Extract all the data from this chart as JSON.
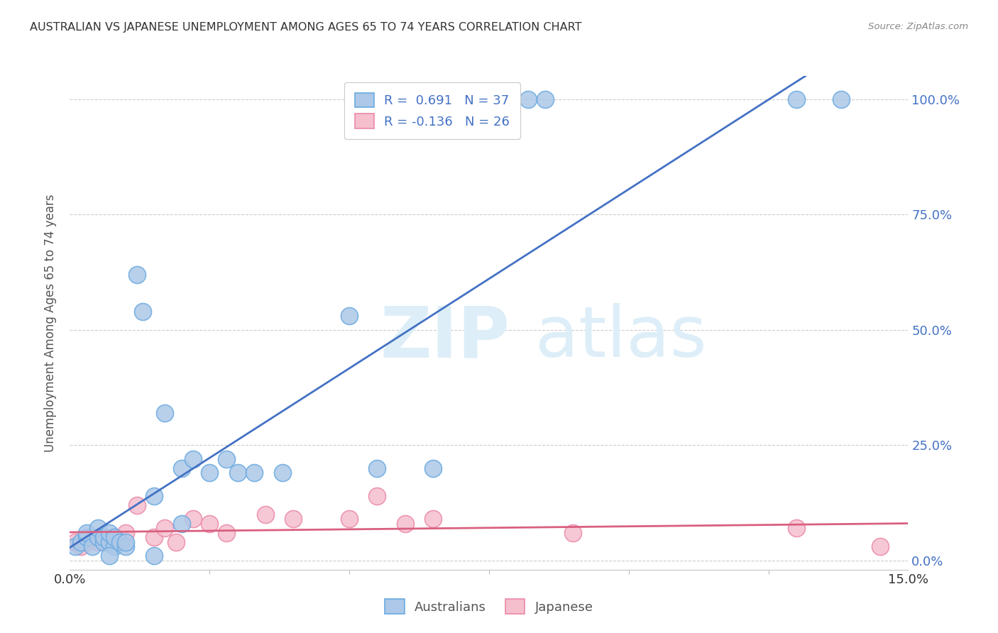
{
  "title": "AUSTRALIAN VS JAPANESE UNEMPLOYMENT AMONG AGES 65 TO 74 YEARS CORRELATION CHART",
  "source": "Source: ZipAtlas.com",
  "ylabel": "Unemployment Among Ages 65 to 74 years",
  "xlim": [
    0.0,
    0.15
  ],
  "ylim": [
    -0.02,
    1.05
  ],
  "xtick_positions": [
    0.0,
    0.15
  ],
  "xtick_labels": [
    "0.0%",
    "15.0%"
  ],
  "xtick_minor_positions": [
    0.025,
    0.05,
    0.075,
    0.1,
    0.125
  ],
  "yticks_right": [
    0.0,
    0.25,
    0.5,
    0.75,
    1.0
  ],
  "ytick_labels_right": [
    "0.0%",
    "25.0%",
    "50.0%",
    "75.0%",
    "100.0%"
  ],
  "blue_color": "#adc8e8",
  "blue_edge_color": "#6aaae0",
  "pink_color": "#f5bfce",
  "pink_edge_color": "#eb8aa8",
  "regression_blue_color": "#4472c4",
  "regression_pink_color": "#d96080",
  "watermark_color": "#ddeef8",
  "R_blue": 0.691,
  "N_blue": 37,
  "R_pink": -0.136,
  "N_pink": 26,
  "aus_x": [
    0.001,
    0.002,
    0.003,
    0.003,
    0.004,
    0.005,
    0.005,
    0.006,
    0.006,
    0.007,
    0.007,
    0.008,
    0.008,
    0.009,
    0.01,
    0.01,
    0.012,
    0.013,
    0.015,
    0.017,
    0.02,
    0.02,
    0.022,
    0.025,
    0.028,
    0.03,
    0.033,
    0.055,
    0.065,
    0.082,
    0.085,
    0.13,
    0.138,
    0.038,
    0.05,
    0.007,
    0.015
  ],
  "aus_y": [
    0.03,
    0.04,
    0.05,
    0.06,
    0.03,
    0.05,
    0.07,
    0.04,
    0.05,
    0.04,
    0.06,
    0.03,
    0.05,
    0.04,
    0.03,
    0.04,
    0.62,
    0.54,
    0.14,
    0.32,
    0.2,
    0.08,
    0.22,
    0.19,
    0.22,
    0.19,
    0.19,
    0.2,
    0.2,
    1.0,
    1.0,
    1.0,
    1.0,
    0.19,
    0.53,
    0.01,
    0.01
  ],
  "jpn_x": [
    0.001,
    0.002,
    0.003,
    0.004,
    0.005,
    0.006,
    0.007,
    0.008,
    0.009,
    0.01,
    0.012,
    0.015,
    0.017,
    0.019,
    0.022,
    0.025,
    0.028,
    0.035,
    0.04,
    0.05,
    0.055,
    0.06,
    0.065,
    0.09,
    0.13,
    0.145
  ],
  "jpn_y": [
    0.04,
    0.03,
    0.04,
    0.05,
    0.04,
    0.05,
    0.04,
    0.05,
    0.04,
    0.06,
    0.12,
    0.05,
    0.07,
    0.04,
    0.09,
    0.08,
    0.06,
    0.1,
    0.09,
    0.09,
    0.14,
    0.08,
    0.09,
    0.06,
    0.07,
    0.03
  ],
  "background_color": "#ffffff",
  "grid_color": "#cccccc",
  "title_color": "#333333",
  "axis_label_color": "#555555",
  "tick_label_color_right": "#4472c4",
  "tick_label_color_bottom": "#333333"
}
